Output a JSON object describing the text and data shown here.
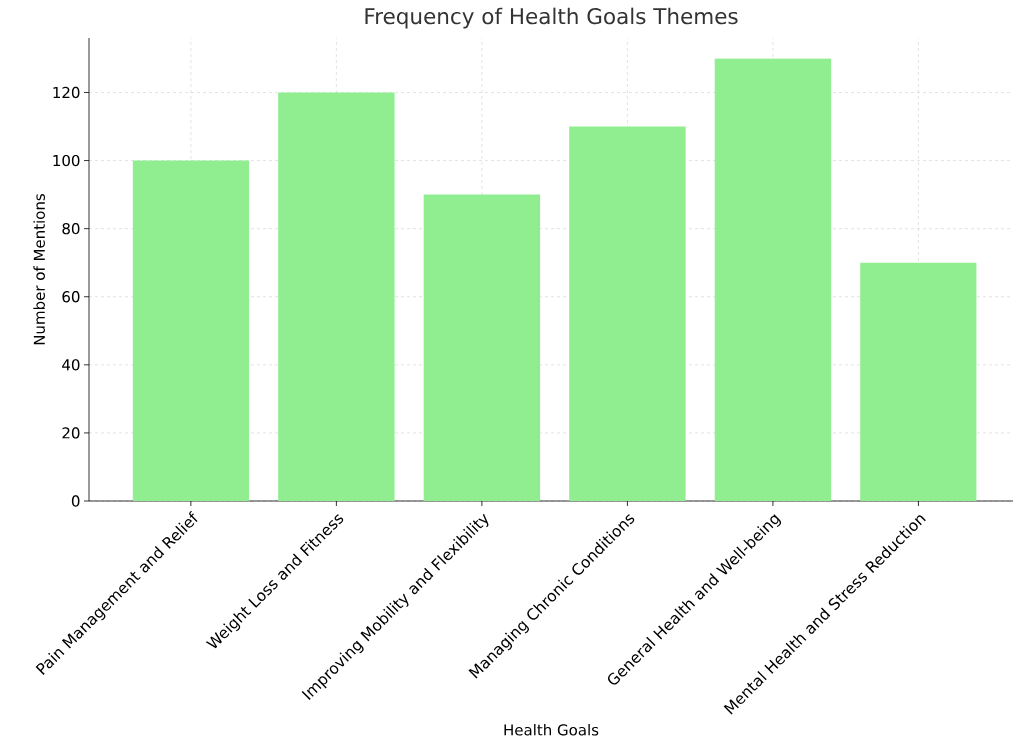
{
  "chart_data": {
    "type": "bar",
    "title": "Frequency of Health Goals Themes",
    "xlabel": "Health Goals",
    "ylabel": "Number of Mentions",
    "categories": [
      "Pain Management and Relief",
      "Weight Loss and Fitness",
      "Improving Mobility and Flexibility",
      "Managing Chronic Conditions",
      "General Health and Well-being",
      "Mental Health and Stress Reduction"
    ],
    "values": [
      100,
      120,
      90,
      110,
      130,
      70
    ],
    "color": "#90ee90",
    "ylim": [
      0,
      136
    ],
    "yticks": [
      0,
      20,
      40,
      60,
      80,
      100,
      120
    ],
    "grid": true
  }
}
